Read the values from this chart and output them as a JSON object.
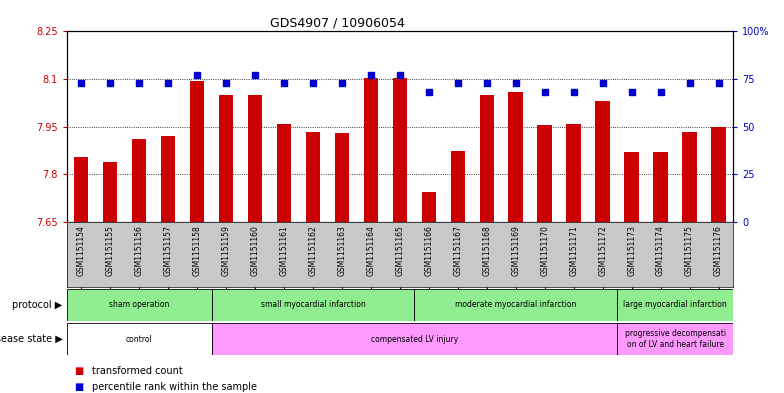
{
  "title": "GDS4907 / 10906054",
  "samples": [
    "GSM1151154",
    "GSM1151155",
    "GSM1151156",
    "GSM1151157",
    "GSM1151158",
    "GSM1151159",
    "GSM1151160",
    "GSM1151161",
    "GSM1151162",
    "GSM1151163",
    "GSM1151164",
    "GSM1151165",
    "GSM1151166",
    "GSM1151167",
    "GSM1151168",
    "GSM1151169",
    "GSM1151170",
    "GSM1151171",
    "GSM1151172",
    "GSM1151173",
    "GSM1151174",
    "GSM1151175",
    "GSM1151176"
  ],
  "bar_values": [
    7.855,
    7.84,
    7.91,
    7.92,
    8.095,
    8.05,
    8.05,
    7.96,
    7.935,
    7.93,
    8.105,
    8.105,
    7.745,
    7.875,
    8.05,
    8.06,
    7.955,
    7.96,
    8.03,
    7.87,
    7.87,
    7.935,
    7.95
  ],
  "percentile_values": [
    73,
    73,
    73,
    73,
    77,
    73,
    77,
    73,
    73,
    73,
    77,
    77,
    68,
    73,
    73,
    73,
    68,
    68,
    73,
    68,
    68,
    73,
    73
  ],
  "y_min": 7.65,
  "y_max": 8.25,
  "y_ticks": [
    7.65,
    7.8,
    7.95,
    8.1,
    8.25
  ],
  "y_tick_labels": [
    "7.65",
    "7.8",
    "7.95",
    "8.1",
    "8.25"
  ],
  "y2_ticks": [
    0,
    25,
    50,
    75,
    100
  ],
  "y2_tick_labels": [
    "0",
    "25",
    "50",
    "75",
    "100%"
  ],
  "bar_color": "#CC0000",
  "dot_color": "#0000CC",
  "bar_baseline": 7.65,
  "group_boundaries_prot": [
    0,
    5,
    12,
    19,
    23
  ],
  "group_labels_prot": [
    "sham operation",
    "small myocardial infarction",
    "moderate myocardial infarction",
    "large myocardial infarction"
  ],
  "group_boundaries_dis": [
    0,
    5,
    19,
    23
  ],
  "group_labels_dis": [
    "control",
    "compensated LV injury",
    "progressive decompensati\non of LV and heart failure"
  ],
  "dis_colors": [
    "#FFFFFF",
    "#FF99FF",
    "#FF99FF"
  ],
  "prot_color": "#90EE90",
  "xtick_bg_color": "#C8C8C8"
}
